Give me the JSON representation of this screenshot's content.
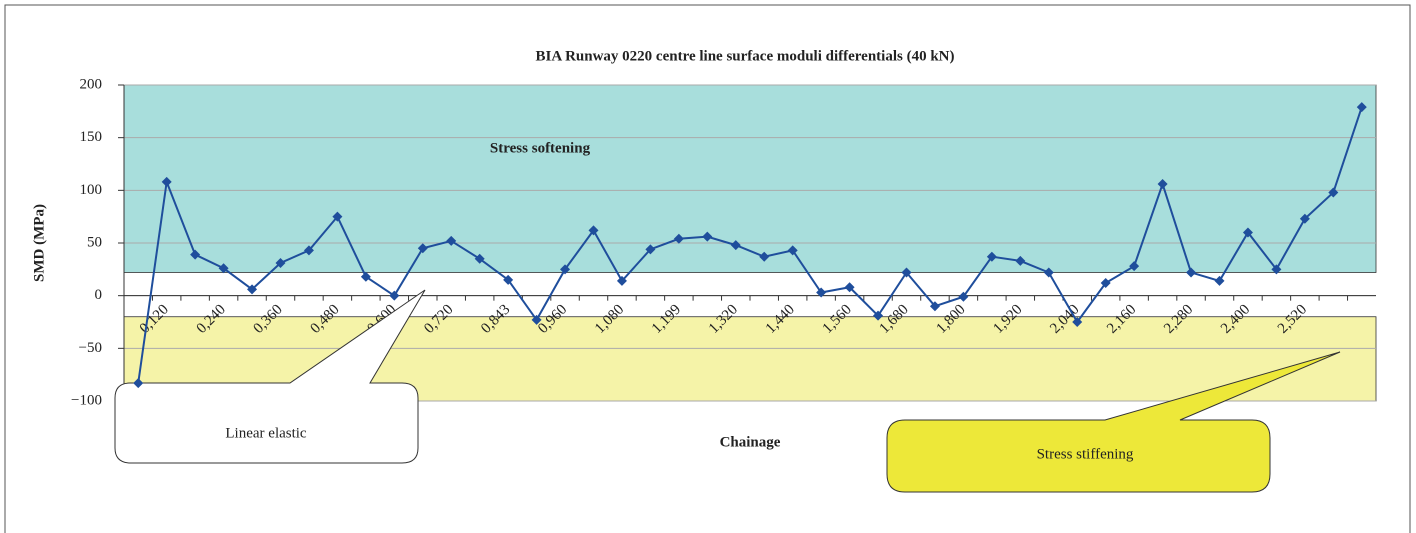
{
  "chart_data": {
    "type": "line",
    "title": "BIA Runway 0220 centre line surface moduli differentials (40 kN)",
    "y_label": "SMD (MPa)",
    "x_label": "Chainage",
    "categories": [
      null,
      "0,120",
      null,
      "0,240",
      null,
      "0,360",
      null,
      "0,480",
      null,
      "0,600",
      null,
      "0,720",
      null,
      "0,843",
      null,
      "0,960",
      null,
      "1,080",
      null,
      "1,199",
      null,
      "1,320",
      null,
      "1,440",
      null,
      "1,560",
      null,
      "1,680",
      null,
      "1,800",
      null,
      "1,920",
      null,
      "2,040",
      null,
      "2,160",
      null,
      "2,280",
      null,
      "2,400",
      null,
      "2,520",
      null,
      null
    ],
    "series": [
      {
        "name": "SMD",
        "color": "#1f4e9c",
        "values": [
          -83,
          108,
          39,
          26,
          6,
          31,
          43,
          75,
          18,
          0,
          45,
          52,
          35,
          15,
          -23,
          25,
          62,
          14,
          44,
          54,
          56,
          48,
          37,
          43,
          3,
          8,
          -19,
          22,
          -10,
          -1,
          37,
          33,
          22,
          -25,
          12,
          28,
          106,
          22,
          14,
          60,
          25,
          73,
          98,
          179
        ]
      }
    ],
    "ylim": [
      -100,
      200
    ],
    "yticks": [
      {
        "value": -100,
        "label": "−100"
      },
      {
        "value": -50,
        "label": "−50"
      },
      0,
      50,
      100,
      150,
      200
    ],
    "grid": true,
    "bands": [
      {
        "from": 22,
        "to": 200,
        "color": "#a8dedc",
        "label": "Stress softening"
      },
      {
        "from": -100,
        "to": -20,
        "color": "#f5f3a8"
      }
    ],
    "annotations": [
      "Linear elastic",
      "Stress stiffening"
    ]
  }
}
